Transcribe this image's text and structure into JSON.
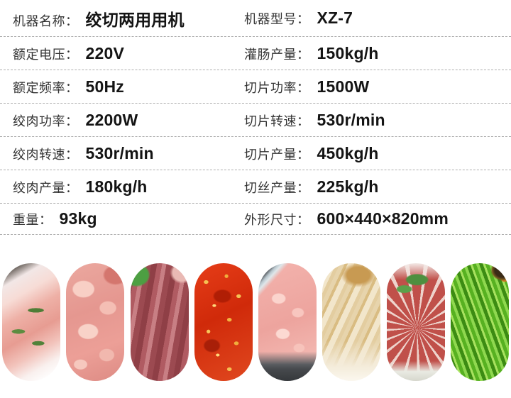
{
  "colors": {
    "page_background": "#ffffff",
    "label_text": "#333333",
    "value_text": "#141414",
    "divider_dashed": "#adadad"
  },
  "spec_table": {
    "rows": [
      {
        "left": {
          "label": "机器名称：",
          "value": "绞切两用用机"
        },
        "right": {
          "label": "机器型号：",
          "value": "XZ-7"
        }
      },
      {
        "left": {
          "label": "额定电压：",
          "value": "220V"
        },
        "right": {
          "label": "灌肠产量：",
          "value": "150kg/h"
        }
      },
      {
        "left": {
          "label": "额定频率：",
          "value": "50Hz"
        },
        "right": {
          "label": "切片功率：",
          "value": "1500W"
        }
      },
      {
        "left": {
          "label": "绞肉功率：",
          "value": "2200W"
        },
        "right": {
          "label": "切片转速：",
          "value": "530r/min"
        }
      },
      {
        "left": {
          "label": "绞肉转速：",
          "value": "530r/min"
        },
        "right": {
          "label": "切片产量：",
          "value": "450kg/h"
        }
      },
      {
        "left": {
          "label": "绞肉产量：",
          "value": "180kg/h"
        },
        "right": {
          "label": "切丝产量：",
          "value": "225kg/h"
        }
      },
      {
        "left": {
          "label": "重量：",
          "value": "93kg"
        },
        "right": {
          "label": "外形尺寸：",
          "value": "600×440×820mm"
        }
      }
    ]
  },
  "gallery": {
    "items": [
      {
        "name": "sliced-meat"
      },
      {
        "name": "minced-meat"
      },
      {
        "name": "sausages"
      },
      {
        "name": "chopped-chili"
      },
      {
        "name": "diced-meat"
      },
      {
        "name": "jellied-shreds"
      },
      {
        "name": "beef-slices"
      },
      {
        "name": "shredded-greens"
      }
    ]
  }
}
